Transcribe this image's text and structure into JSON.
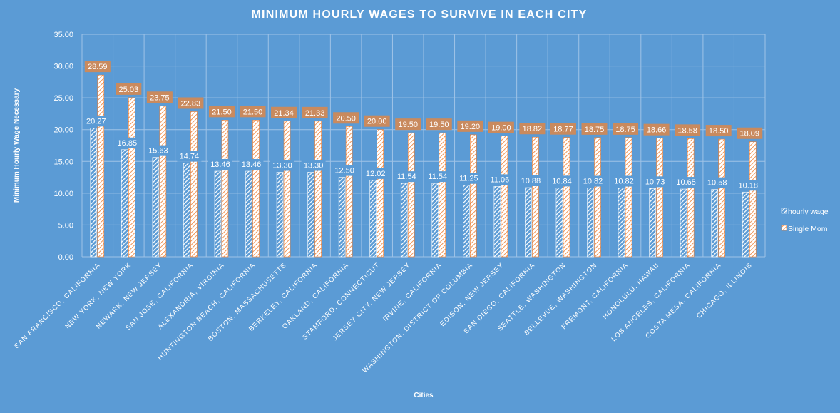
{
  "chart_data": {
    "type": "bar",
    "title": "MINIMUM HOURLY WAGES TO SURVIVE IN EACH CITY",
    "xlabel": "Cities",
    "ylabel": "Minimum Hourly Wage Necessary",
    "ylim": [
      0,
      35
    ],
    "yticks": [
      "0.00",
      "5.00",
      "10.00",
      "15.00",
      "20.00",
      "25.00",
      "30.00",
      "35.00"
    ],
    "grid": true,
    "legend_position": "right",
    "categories": [
      "SAN FRANCISCO, CALIFORNIA",
      "NEW YORK, NEW YORK",
      "NEWARK, NEW JERSEY",
      "SAN JOSE, CALIFORNIA",
      "ALEXANDRIA, VIRGINIA",
      "HUNTINGTON BEACH, CALIFORNIA",
      "BOSTON, MASSACHUSETTS",
      "BERKELEY, CALIFORNIA",
      "OAKLAND, CALIFORNIA",
      "STAMFORD, CONNECTICUT",
      "JERSEY CITY, NEW JERSEY",
      "IRVINE, CALIFORNIA",
      "WASHINGTON, DISTRICT OF COLUMBIA",
      "EDISON, NEW JERSEY",
      "SAN DIEGO, CALIFORNIA",
      "SEATTLE, WASHINGTON",
      "BELLEVUE, WASHINGTON",
      "FREMONT, CALIFORNIA",
      "HONOLULU, HAWAII",
      "LOS ANGELES, CALIFORNIA",
      "COSTA MESA, CALIFORNIA",
      "CHICAGO, ILLINOIS"
    ],
    "series": [
      {
        "name": "hourly wage",
        "color": "#ffffff",
        "values": [
          20.27,
          16.85,
          15.63,
          14.74,
          13.46,
          13.46,
          13.3,
          13.3,
          12.5,
          12.02,
          11.54,
          11.54,
          11.25,
          11.06,
          10.88,
          10.84,
          10.82,
          10.82,
          10.73,
          10.65,
          10.58,
          10.18
        ],
        "labels": [
          "20.27",
          "16.85",
          "15.63",
          "14.74",
          "13.46",
          "13.46",
          "13.30",
          "13.30",
          "12.50",
          "12.02",
          "11.54",
          "11.54",
          "11.25",
          "11.06",
          "10.88",
          "10.84",
          "10.82",
          "10.82",
          "10.73",
          "10.65",
          "10.58",
          "10.18"
        ]
      },
      {
        "name": "Single Mom",
        "color": "#ed7d31",
        "values": [
          28.59,
          25.03,
          23.75,
          22.83,
          21.5,
          21.5,
          21.34,
          21.33,
          20.5,
          20.0,
          19.5,
          19.5,
          19.2,
          19.0,
          18.82,
          18.77,
          18.75,
          18.75,
          18.66,
          18.58,
          18.5,
          18.09
        ],
        "labels": [
          "28.59",
          "25.03",
          "23.75",
          "22.83",
          "21.50",
          "21.50",
          "21.34",
          "21.33",
          "20.50",
          "20.00",
          "19.50",
          "19.50",
          "19.20",
          "19.00",
          "18.82",
          "18.77",
          "18.75",
          "18.75",
          "18.66",
          "18.58",
          "18.50",
          "18.09"
        ]
      }
    ],
    "colors": {
      "background": "#5b9bd5",
      "grid": "#9fc3e7",
      "label_box": "#c98a5e",
      "text": "#ffffff"
    }
  }
}
